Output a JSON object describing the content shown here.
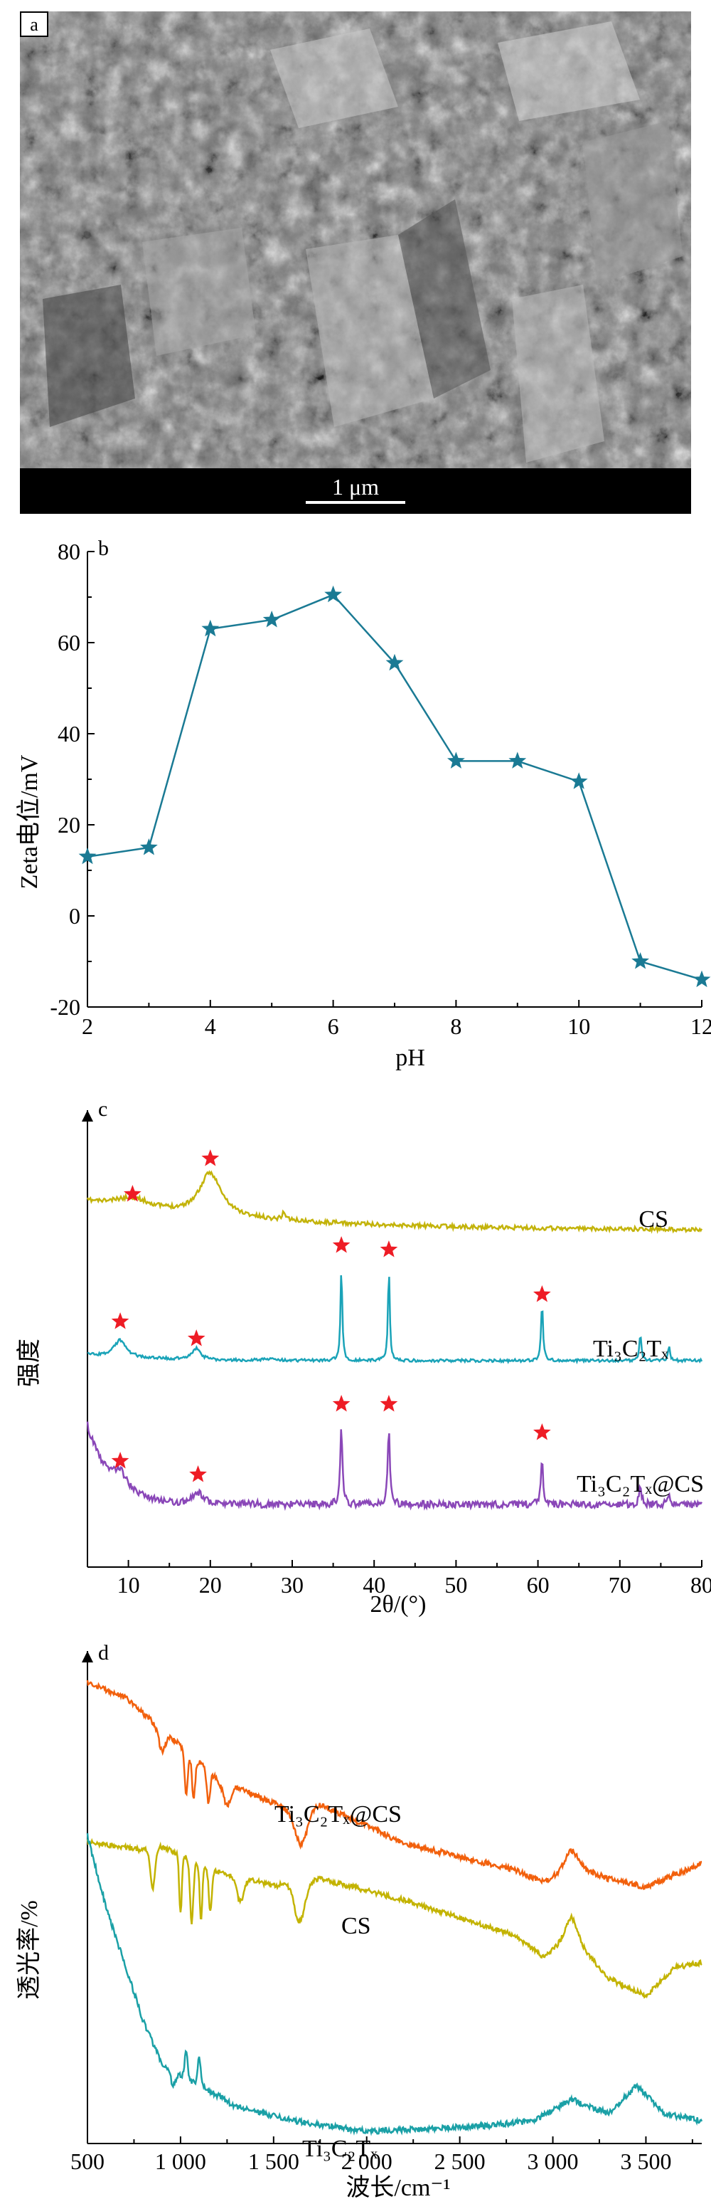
{
  "panels": {
    "a": {
      "label": "a",
      "scale_bar_label": "1 μm"
    },
    "b": {
      "label": "b"
    },
    "c": {
      "label": "c"
    },
    "d": {
      "label": "d"
    }
  },
  "colors": {
    "panel_b_line": "#1a7a94",
    "cs": "#c3b30a",
    "ti3c2tx_c": "#1aa3b8",
    "ti3c2tx_cs_c": "#8a47b8",
    "ti3c2tx_cs_d": "#f2600c",
    "cs_d": "#c3b300",
    "ti3c2tx_d": "#1aa0a6",
    "star": "#ee1c25"
  },
  "chart_data": [
    {
      "panel": "b",
      "type": "line",
      "xlabel": "pH",
      "ylabel": "Zeta电位/mV",
      "xlim": [
        2,
        12
      ],
      "ylim": [
        -20,
        80
      ],
      "xticks": [
        "2",
        "4",
        "6",
        "8",
        "10",
        "12"
      ],
      "yticks": [
        "-20",
        "0",
        "20",
        "40",
        "60",
        "80"
      ],
      "x": [
        2,
        3,
        4,
        5,
        6,
        7,
        8,
        9,
        10,
        11,
        12
      ],
      "y": [
        13,
        15,
        63,
        65,
        70.5,
        55.5,
        34,
        34,
        29.5,
        -10,
        -14
      ],
      "marker": "star"
    },
    {
      "panel": "c",
      "type": "line",
      "xlabel": "2θ/(°)",
      "ylabel": "强度",
      "xlim": [
        5,
        80
      ],
      "xticks": [
        "10",
        "20",
        "30",
        "40",
        "50",
        "60",
        "70",
        "80"
      ],
      "series": [
        {
          "name": "CS",
          "peaks_2theta": [
            10.5,
            20
          ],
          "star_positions": [
            10.5,
            20
          ]
        },
        {
          "name": "Ti₃C₂Tₓ",
          "peaks_2theta": [
            9,
            18.3,
            36,
            41.8,
            60.5,
            72.5,
            76
          ],
          "star_positions": [
            9,
            18.3,
            36,
            41.8,
            60.5
          ]
        },
        {
          "name": "Ti₃C₂Tₓ@CS",
          "peaks_2theta": [
            9,
            18.5,
            36,
            41.8,
            60.5,
            72.5,
            76
          ],
          "star_positions": [
            9,
            18.5,
            36,
            41.8,
            60.5
          ]
        }
      ]
    },
    {
      "panel": "d",
      "type": "line",
      "xlabel": "波长/cm⁻¹",
      "ylabel": "透光率/%",
      "xlim": [
        500,
        3800
      ],
      "xticks": [
        "500",
        "1 000",
        "1 500",
        "2 000",
        "2 500",
        "3 000",
        "3 500"
      ],
      "series": [
        {
          "name": "Ti₃C₂Tₓ@CS"
        },
        {
          "name": "CS"
        },
        {
          "name": "Ti₃C₂Tₓ"
        }
      ]
    }
  ]
}
